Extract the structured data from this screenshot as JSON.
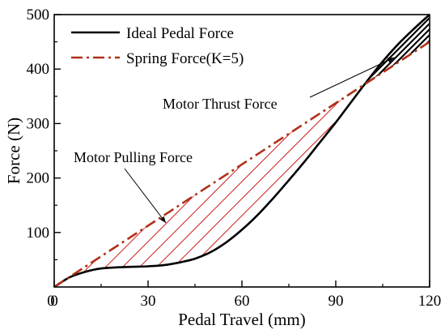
{
  "chart_data": {
    "type": "line",
    "title": "",
    "xlabel": "Pedal Travel (mm)",
    "ylabel": "Force (N)",
    "xlim": [
      0,
      120
    ],
    "ylim": [
      0,
      500
    ],
    "xticks": [
      0,
      30,
      60,
      90,
      120
    ],
    "yticks": [
      100,
      200,
      300,
      400,
      500
    ],
    "grid": false,
    "legend_position": "top-left",
    "series": [
      {
        "name": "Ideal Pedal Force",
        "color": "#000000",
        "style": "solid",
        "x": [
          0,
          5,
          10,
          15,
          20,
          25,
          30,
          35,
          40,
          45,
          50,
          55,
          60,
          65,
          70,
          75,
          80,
          85,
          90,
          95,
          100,
          105,
          110,
          115,
          120
        ],
        "y": [
          0,
          18,
          28,
          34,
          36,
          37,
          38,
          40,
          45,
          52,
          64,
          82,
          105,
          132,
          163,
          196,
          230,
          266,
          302,
          340,
          378,
          414,
          446,
          474,
          500
        ]
      },
      {
        "name": "Spring Force(K=5)",
        "color": "#b03018",
        "style": "dash-dot",
        "x": [
          0,
          120
        ],
        "y": [
          0,
          450
        ]
      }
    ],
    "annotations": [
      {
        "text": "Motor Thrust Force",
        "region": "above spring line, x 105-120 mm"
      },
      {
        "text": "Motor Pulling Force",
        "region": "between curves, x 0-105 mm"
      }
    ]
  }
}
